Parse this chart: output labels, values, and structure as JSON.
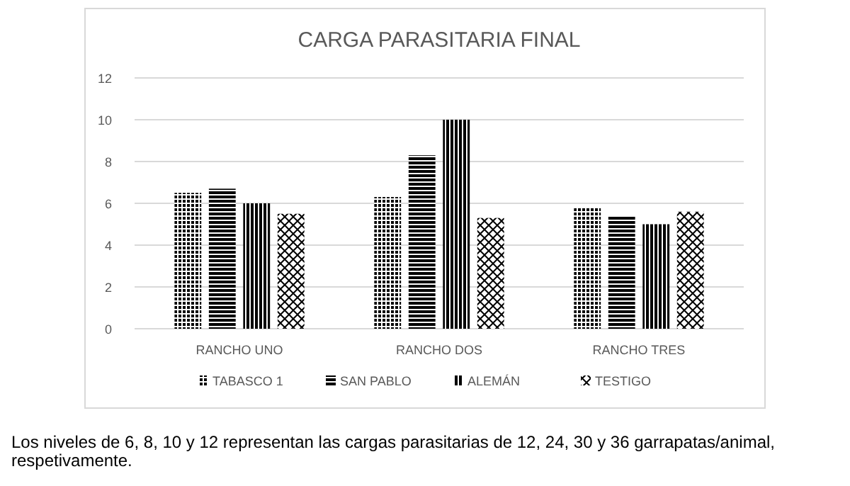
{
  "chart_data": {
    "type": "bar",
    "title": "CARGA PARASITARIA FINAL",
    "categories": [
      "RANCHO UNO",
      "RANCHO DOS",
      "RANCHO TRES"
    ],
    "series": [
      {
        "name": "TABASCO 1",
        "color": "#000000",
        "values": [
          6.5,
          6.3,
          5.8
        ]
      },
      {
        "name": "SAN PABLO",
        "color": "#000000",
        "values": [
          6.7,
          8.3,
          5.4
        ]
      },
      {
        "name": "ALEMÁN",
        "color": "#000000",
        "values": [
          6.0,
          10.0,
          5.0
        ]
      },
      {
        "name": "TESTIGO",
        "color": "#000000",
        "values": [
          5.5,
          5.3,
          5.6
        ]
      }
    ],
    "ylim": [
      0,
      12
    ],
    "yticks": [
      0,
      2,
      4,
      6,
      8,
      10,
      12
    ],
    "grid": "y",
    "legend": "bottom",
    "annotations": [
      "Los niveles de 6, 8, 10 y 12 representan las cargas parasitarias de 12, 24, 30 y 36 garrapatas/animal, respetivamente."
    ]
  }
}
